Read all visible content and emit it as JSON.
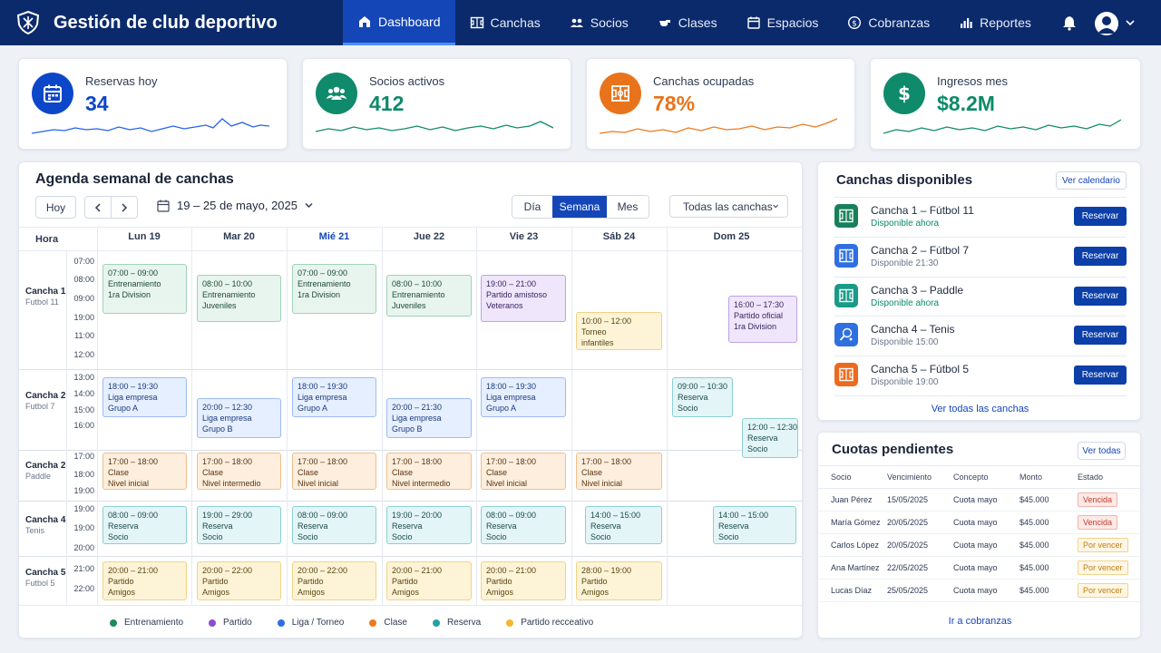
{
  "app": {
    "title": "Gestión de club deportivo"
  },
  "nav": [
    {
      "label": "Dashboard",
      "icon": "house-icon"
    },
    {
      "label": "Canchas",
      "icon": "court-icon"
    },
    {
      "label": "Socios",
      "icon": "people-icon"
    },
    {
      "label": "Clases",
      "icon": "whistle-icon"
    },
    {
      "label": "Espacios",
      "icon": "calendar-icon"
    },
    {
      "label": "Cobranzas",
      "icon": "dollar-icon"
    },
    {
      "label": "Reportes",
      "icon": "bar-chart-icon"
    }
  ],
  "kpis": [
    {
      "label": "Reservas hoy",
      "value": "34",
      "color": "#0d47c9"
    },
    {
      "label": "Socios activos",
      "value": "412",
      "color": "#0f8a6a"
    },
    {
      "label": "Canchas ocupadas",
      "value": "78%",
      "color": "#e8731a"
    },
    {
      "label": "Ingresos mes",
      "value": "$8.2M",
      "color": "#0f8a6a"
    }
  ],
  "agenda": {
    "title": "Agenda semanal de canchas",
    "today_btn": "Hoy",
    "range": "19 – 25 de mayo, 2025",
    "views": [
      "Día",
      "Semana",
      "Mes"
    ],
    "filter": "Todas las canchas",
    "hour_header": "Hora",
    "days": [
      "Lun 19",
      "Mar 20",
      "Mié 21",
      "Jue 22",
      "Vie 23",
      "Sáb 24",
      "Dom 25"
    ],
    "courts": [
      {
        "name": "Cancha 1",
        "sub": "Futbol 11",
        "times": [
          "07:00",
          "08:00",
          "09:00",
          "19:00",
          "11:00",
          "12:00"
        ]
      },
      {
        "name": "Cancha 2",
        "sub": "Futbol 7",
        "times": [
          "13:00",
          "14:00",
          "15:00",
          "16:00"
        ]
      },
      {
        "name": "Cancha 2",
        "sub": "Paddle",
        "times": [
          "17:00",
          "18:00",
          "19:00"
        ]
      },
      {
        "name": "Cancha 4",
        "sub": "Tenis",
        "times": [
          "19:00",
          "19:00",
          "20:00"
        ]
      },
      {
        "name": "Cancha 5",
        "sub": "Futbol 5",
        "times": [
          "21:00",
          "22:00"
        ]
      }
    ],
    "events": [
      {
        "time": "07:00 – 09:00",
        "title": "Entrenamiento",
        "sub": "1ra Division",
        "type": "green"
      },
      {
        "time": "08:00 – 10:00",
        "title": "Entrenamiento",
        "sub": "Juveniles",
        "type": "green"
      },
      {
        "time": "07:00 – 09:00",
        "title": "Entrenamiento",
        "sub": "1ra Division",
        "type": "green"
      },
      {
        "time": "08:00 – 10:00",
        "title": "Entrenamiento",
        "sub": "Juveniles",
        "type": "green"
      },
      {
        "time": "19:00 – 21:00",
        "title": "Partido amistoso",
        "sub": "Veteranos",
        "type": "purple"
      },
      {
        "time": "10:00 – 12:00",
        "title": "Torneo",
        "sub": "infantiles",
        "type": "yellow"
      },
      {
        "time": "16:00 – 17:30",
        "title": "Partido oficial",
        "sub": "1ra Division",
        "type": "purple"
      },
      {
        "time": "18:00 – 19:30",
        "title": "Liga empresa",
        "sub": "Grupo A",
        "type": "blue"
      },
      {
        "time": "20:00 – 12:30",
        "title": "Liga empresa",
        "sub": "Grupo B",
        "type": "blue"
      },
      {
        "time": "18:00 – 19:30",
        "title": "Liga empresa",
        "sub": "Grupo A",
        "type": "blue"
      },
      {
        "time": "20:00 – 21:30",
        "title": "Liga empresa",
        "sub": "Grupo B",
        "type": "blue"
      },
      {
        "time": "18:00 – 19:30",
        "title": "Liga empresa",
        "sub": "Grupo A",
        "type": "blue"
      },
      {
        "time": "09:00 – 10:30",
        "title": "Reserva",
        "sub": "Socio",
        "type": "teal"
      },
      {
        "time": "12:00 – 12:30",
        "title": "Reserva",
        "sub": "Socio",
        "type": "teal"
      },
      {
        "time": "17:00 – 18:00",
        "title": "Clase",
        "sub": "Nivel inicial",
        "type": "orange"
      },
      {
        "time": "17:00 – 18:00",
        "title": "Clase",
        "sub": "Nivel intermedio",
        "type": "orange"
      },
      {
        "time": "17:00 – 18:00",
        "title": "Clase",
        "sub": "Nivel inicial",
        "type": "orange"
      },
      {
        "time": "17:00 – 18:00",
        "title": "Clase",
        "sub": "Nivel intermedio",
        "type": "orange"
      },
      {
        "time": "17:00 – 18:00",
        "title": "Clase",
        "sub": "Nivel inicial",
        "type": "orange"
      },
      {
        "time": "17:00 – 18:00",
        "title": "Clase",
        "sub": "Nivel inicial",
        "type": "orange"
      },
      {
        "time": "08:00 – 09:00",
        "title": "Reserva",
        "sub": "Socio",
        "type": "teal"
      },
      {
        "time": "19:00 – 29:00",
        "title": "Reserva",
        "sub": "Socio",
        "type": "teal"
      },
      {
        "time": "08:00 – 09:00",
        "title": "Reserva",
        "sub": "Socio",
        "type": "teal"
      },
      {
        "time": "19:00 – 20:00",
        "title": "Reserva",
        "sub": "Socio",
        "type": "teal"
      },
      {
        "time": "08:00 – 09:00",
        "title": "Reserva",
        "sub": "Socio",
        "type": "teal"
      },
      {
        "time": "14:00 – 15:00",
        "title": "Reserva",
        "sub": "Socio",
        "type": "teal"
      },
      {
        "time": "14:00 – 15:00",
        "title": "Reserva",
        "sub": "Socio",
        "type": "teal"
      },
      {
        "time": "20:00 – 21:00",
        "title": "Partido",
        "sub": "Amigos",
        "type": "yellow"
      },
      {
        "time": "20:00 – 22:00",
        "title": "Partido",
        "sub": "Amigos",
        "type": "yellow"
      },
      {
        "time": "20:00 – 22:00",
        "title": "Partido",
        "sub": "Amigos",
        "type": "yellow"
      },
      {
        "time": "20:00 – 21:00",
        "title": "Partido",
        "sub": "Amigos",
        "type": "yellow"
      },
      {
        "time": "20:00 – 21:00",
        "title": "Partido",
        "sub": "Amigos",
        "type": "yellow"
      },
      {
        "time": "28:00 – 19:00",
        "title": "Partido",
        "sub": "Amigos",
        "type": "yellow"
      }
    ],
    "legend": [
      {
        "label": "Entrenamiento",
        "color": "#1f8a5c"
      },
      {
        "label": "Partido",
        "color": "#8a4fd1"
      },
      {
        "label": "Liga / Torneo",
        "color": "#2f6fe0"
      },
      {
        "label": "Clase",
        "color": "#ec7a1d"
      },
      {
        "label": "Reserva",
        "color": "#21a3a8"
      },
      {
        "label": "Partido recceativo",
        "color": "#f1b82d"
      }
    ]
  },
  "available": {
    "title": "Canchas disponibles",
    "calendar_btn": "Ver calendario",
    "reserve_label": "Reservar",
    "items": [
      {
        "name": "Cancha 1 – Fútbol 11",
        "status": "Disponible ahora",
        "status_color": "#0f8a6a",
        "icon_color": "#17805a",
        "icon": "court-icon"
      },
      {
        "name": "Cancha 2 – Fútbol 7",
        "status": "Disponible 21:30",
        "status_color": "#6b778b",
        "icon_color": "#2f6fe0",
        "icon": "court-icon"
      },
      {
        "name": "Cancha 3 – Paddle",
        "status": "Disponible ahora",
        "status_color": "#0f8a6a",
        "icon_color": "#1b9a86",
        "icon": "court-icon"
      },
      {
        "name": "Cancha 4 – Tenis",
        "status": "Disponible 15:00",
        "status_color": "#6b778b",
        "icon_color": "#2f6fe0",
        "icon": "tennis-icon"
      },
      {
        "name": "Cancha 5 – Fútbol 5",
        "status": "Disponible 19:00",
        "status_color": "#6b778b",
        "icon_color": "#ec6a1d",
        "icon": "court-icon"
      }
    ],
    "all_link": "Ver todas las canchas"
  },
  "fees": {
    "title": "Cuotas pendientes",
    "all_btn": "Ver todas",
    "headers": [
      "Socio",
      "Vencimiento",
      "Concepto",
      "Monto",
      "Estado"
    ],
    "rows": [
      {
        "socio": "Juan Pérez",
        "venc": "15/05/2025",
        "concepto": "Cuota mayo",
        "monto": "$45.000",
        "estado": "Vencida",
        "kind": "red"
      },
      {
        "socio": "María Gómez",
        "venc": "20/05/2025",
        "concepto": "Cuota mayo",
        "monto": "$45.000",
        "estado": "Vencida",
        "kind": "red"
      },
      {
        "socio": "Carlos López",
        "venc": "20/05/2025",
        "concepto": "Cuota mayo",
        "monto": "$45.000",
        "estado": "Por vencer",
        "kind": "amber"
      },
      {
        "socio": "Ana Martínez",
        "venc": "22/05/2025",
        "concepto": "Cuota mayo",
        "monto": "$45.000",
        "estado": "Por vencer",
        "kind": "amber"
      },
      {
        "socio": "Lucas Díaz",
        "venc": "25/05/2025",
        "concepto": "Cuota mayo",
        "monto": "$45.000",
        "estado": "Por vencer",
        "kind": "amber"
      }
    ],
    "go_link": "Ir a cobranzas"
  }
}
